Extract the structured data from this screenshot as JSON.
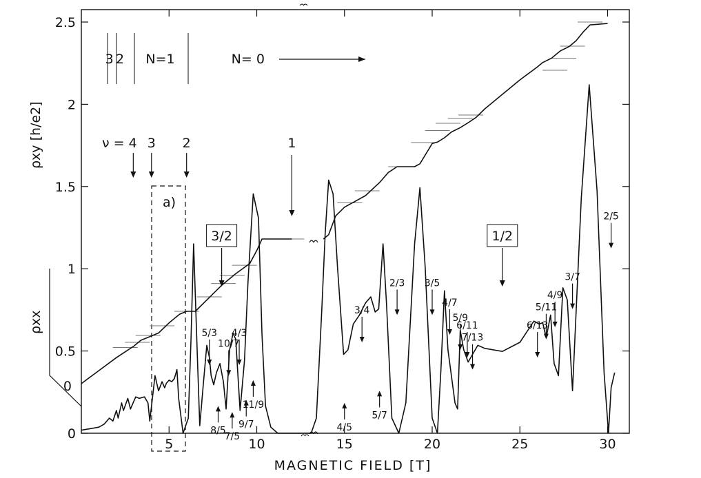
{
  "chart_data": {
    "type": "line",
    "xlabel": "MAGNETIC FIELD [T]",
    "ylabel_hall": "ρxy [h/e2]",
    "ylabel_long": "ρxx",
    "xlim": [
      0,
      30.6
    ],
    "ylim": [
      0,
      2.5
    ],
    "x_ticks": [
      {
        "value": 5,
        "label": "5"
      },
      {
        "value": 10,
        "label": "10"
      },
      {
        "value": 15,
        "label": "15"
      },
      {
        "value": 20,
        "label": "20"
      },
      {
        "value": 25,
        "label": "25"
      },
      {
        "value": 30,
        "label": "30"
      }
    ],
    "y_ticks": [
      {
        "value": 0,
        "label": "0"
      },
      {
        "value": 0.5,
        "label": "0.5"
      },
      {
        "value": 1,
        "label": "1"
      },
      {
        "value": 1.5,
        "label": "1.5"
      },
      {
        "value": 2,
        "label": "2"
      },
      {
        "value": 2.5,
        "label": "2.5"
      }
    ],
    "hall_offset_label": "0",
    "series": [
      {
        "name": "ρxy",
        "x": [
          0,
          1,
          2,
          2.5,
          3,
          3.4,
          4.0,
          4.4,
          5.0,
          5.6,
          6.0,
          6.5,
          7.0,
          8.0,
          8.8,
          9.6,
          10.0,
          10.3,
          10.6,
          12.0,
          13.8,
          14.1,
          14.5,
          15.0,
          15.6,
          16.2,
          17.0,
          17.5,
          18.0,
          19.0,
          19.3,
          19.7,
          20.0,
          20.3,
          20.7,
          21.1,
          21.6,
          22.0,
          22.5,
          23.0,
          24.0,
          25.0,
          26.0,
          26.3,
          26.8,
          27.3,
          27.8,
          28.2,
          28.6,
          29.0,
          30.0
        ],
        "y": [
          0,
          0.09,
          0.18,
          0.22,
          0.26,
          0.3,
          0.33,
          0.35,
          0.42,
          0.48,
          0.5,
          0.5,
          0.56,
          0.68,
          0.76,
          0.83,
          0.92,
          1.0,
          1.0,
          1.0,
          1.0,
          1.03,
          1.16,
          1.22,
          1.26,
          1.3,
          1.39,
          1.46,
          1.5,
          1.5,
          1.52,
          1.6,
          1.66,
          1.67,
          1.7,
          1.74,
          1.77,
          1.8,
          1.84,
          1.9,
          2.0,
          2.1,
          2.19,
          2.22,
          2.25,
          2.3,
          2.33,
          2.37,
          2.43,
          2.48,
          2.49
        ]
      },
      {
        "name": "ρxx",
        "x": [
          0,
          0.5,
          1.0,
          1.3,
          1.6,
          1.8,
          2.0,
          2.1,
          2.3,
          2.4,
          2.65,
          2.8,
          3.1,
          3.3,
          3.6,
          3.8,
          3.9,
          4.2,
          4.4,
          4.6,
          4.75,
          4.85,
          5.0,
          5.15,
          5.3,
          5.45,
          5.55,
          5.8,
          6.1,
          6.25,
          6.4,
          6.6,
          6.75,
          6.95,
          7.15,
          7.3,
          7.4,
          7.55,
          7.7,
          7.9,
          8.1,
          8.25,
          8.45,
          8.65,
          8.8,
          9.05,
          9.3,
          9.5,
          9.8,
          10.1,
          10.3,
          10.5,
          10.8,
          11.2,
          11.6,
          12.0,
          12.6,
          13.1,
          13.4,
          13.7,
          13.9,
          14.1,
          14.35,
          14.6,
          14.95,
          15.2,
          15.5,
          15.85,
          16.2,
          16.5,
          16.75,
          16.95,
          17.2,
          17.4,
          17.7,
          18.1,
          18.5,
          19.0,
          19.3,
          19.6,
          20.0,
          20.3,
          20.5,
          20.7,
          20.9,
          21.05,
          21.3,
          21.45,
          21.6,
          21.8,
          22.05,
          22.3,
          22.6,
          23.0,
          24.0,
          25.0,
          25.8,
          26.1,
          26.3,
          26.5,
          26.75,
          26.95,
          27.2,
          27.45,
          27.7,
          28.0,
          28.5,
          28.95,
          29.4,
          29.8,
          30.05,
          30.2,
          30.4
        ],
        "y": [
          0.02,
          0.03,
          0.04,
          0.06,
          0.1,
          0.08,
          0.15,
          0.1,
          0.2,
          0.15,
          0.23,
          0.16,
          0.24,
          0.23,
          0.24,
          0.2,
          0.08,
          0.38,
          0.28,
          0.34,
          0.3,
          0.33,
          0.35,
          0.34,
          0.36,
          0.42,
          0.23,
          0.0,
          0.1,
          0.62,
          1.25,
          0.55,
          0.05,
          0.32,
          0.58,
          0.5,
          0.38,
          0.32,
          0.4,
          0.46,
          0.34,
          0.16,
          0.55,
          0.66,
          0.62,
          0.15,
          0.48,
          1.0,
          1.58,
          1.42,
          0.65,
          0.18,
          0.04,
          0.0,
          0.0,
          0.0,
          0.0,
          0.0,
          0.1,
          0.8,
          1.32,
          1.67,
          1.58,
          1.1,
          0.52,
          0.55,
          0.72,
          0.78,
          0.86,
          0.9,
          0.8,
          0.82,
          1.25,
          0.85,
          0.1,
          0.0,
          0.2,
          1.25,
          1.62,
          1.1,
          0.1,
          0.0,
          0.42,
          0.94,
          0.55,
          0.42,
          0.2,
          0.16,
          0.68,
          0.55,
          0.47,
          0.52,
          0.58,
          0.56,
          0.54,
          0.6,
          0.74,
          0.72,
          0.73,
          0.63,
          0.78,
          0.46,
          0.38,
          0.96,
          0.88,
          0.28,
          1.55,
          2.3,
          1.6,
          0.4,
          0.0,
          0.3,
          0.4
        ]
      }
    ],
    "plateau_levels": [
      {
        "x": 2.5,
        "y": 0.25
      },
      {
        "x": 3.2,
        "y": 0.2857
      },
      {
        "x": 3.8,
        "y": 0.3333
      },
      {
        "x": 4.6,
        "y": 0.4
      },
      {
        "x": 6.0,
        "y": 0.5
      },
      {
        "x": 7.3,
        "y": 0.6
      },
      {
        "x": 8.1,
        "y": 0.6923
      },
      {
        "x": 8.6,
        "y": 0.75
      },
      {
        "x": 9.3,
        "y": 0.8182
      },
      {
        "x": 12.0,
        "y": 1.0
      },
      {
        "x": 15.3,
        "y": 1.25
      },
      {
        "x": 16.3,
        "y": 1.3333
      },
      {
        "x": 18.2,
        "y": 1.5
      },
      {
        "x": 19.5,
        "y": 1.6667
      },
      {
        "x": 20.3,
        "y": 1.75
      },
      {
        "x": 20.9,
        "y": 1.8
      },
      {
        "x": 21.6,
        "y": 1.8333
      },
      {
        "x": 22.2,
        "y": 1.8571
      },
      {
        "x": 27.0,
        "y": 2.1667
      },
      {
        "x": 27.5,
        "y": 2.25
      },
      {
        "x": 28.0,
        "y": 2.3333
      },
      {
        "x": 29.0,
        "y": 2.5
      }
    ],
    "annotations": {
      "landau_levels": [
        {
          "label": "3",
          "x": 1.6
        },
        {
          "label": "2",
          "x": 2.2
        },
        {
          "label": "N=1",
          "x": 4.5
        },
        {
          "label": "N= 0",
          "x": 9.5
        }
      ],
      "nu_label": "ν = 4",
      "nu_marks": [
        {
          "label": "",
          "x": 3.0
        },
        {
          "label": "3",
          "x": 4.0
        },
        {
          "label": "2",
          "x": 6.0
        },
        {
          "label": "1",
          "x": 12.0
        }
      ],
      "boxed_labels": [
        {
          "label": "3/2",
          "x": 8.0,
          "y": 1.0
        },
        {
          "label": "1/2",
          "x": 24.0,
          "y": 1.0
        }
      ],
      "inset_label": "a)",
      "inset_label_x": 5.0,
      "fraction_arrows": [
        {
          "label": "5/3",
          "x": 7.3,
          "y": 0.45,
          "dir": "down"
        },
        {
          "label": "10/7",
          "x": 8.4,
          "y": 0.38,
          "dir": "down"
        },
        {
          "label": "4/3",
          "x": 9.0,
          "y": 0.45,
          "dir": "down"
        },
        {
          "label": "11/9",
          "x": 9.8,
          "y": 0.35,
          "dir": "up"
        },
        {
          "label": "9/7",
          "x": 9.4,
          "y": 0.22,
          "dir": "up"
        },
        {
          "label": "8/5",
          "x": 7.8,
          "y": 0.18,
          "dir": "up"
        },
        {
          "label": "7/5",
          "x": 8.6,
          "y": 0.14,
          "dir": "up"
        },
        {
          "label": "3/4",
          "x": 16.0,
          "y": 0.6,
          "dir": "down"
        },
        {
          "label": "5/7",
          "x": 17.0,
          "y": 0.28,
          "dir": "up"
        },
        {
          "label": "4/5",
          "x": 15.0,
          "y": 0.2,
          "dir": "up"
        },
        {
          "label": "2/3",
          "x": 18.0,
          "y": 0.78,
          "dir": "down"
        },
        {
          "label": "3/5",
          "x": 20.0,
          "y": 0.78,
          "dir": "down"
        },
        {
          "label": "4/7",
          "x": 21.0,
          "y": 0.65,
          "dir": "down"
        },
        {
          "label": "5/9",
          "x": 21.6,
          "y": 0.55,
          "dir": "down"
        },
        {
          "label": "6/11",
          "x": 22.0,
          "y": 0.5,
          "dir": "down"
        },
        {
          "label": "7/13",
          "x": 22.3,
          "y": 0.42,
          "dir": "down"
        },
        {
          "label": "6/13",
          "x": 26.0,
          "y": 0.5,
          "dir": "down"
        },
        {
          "label": "5/11",
          "x": 26.5,
          "y": 0.62,
          "dir": "down"
        },
        {
          "label": "4/9",
          "x": 27.0,
          "y": 0.7,
          "dir": "down"
        },
        {
          "label": "3/7",
          "x": 28.0,
          "y": 0.82,
          "dir": "down"
        },
        {
          "label": "2/5",
          "x": 30.2,
          "y": 1.22,
          "dir": "down"
        }
      ]
    }
  }
}
